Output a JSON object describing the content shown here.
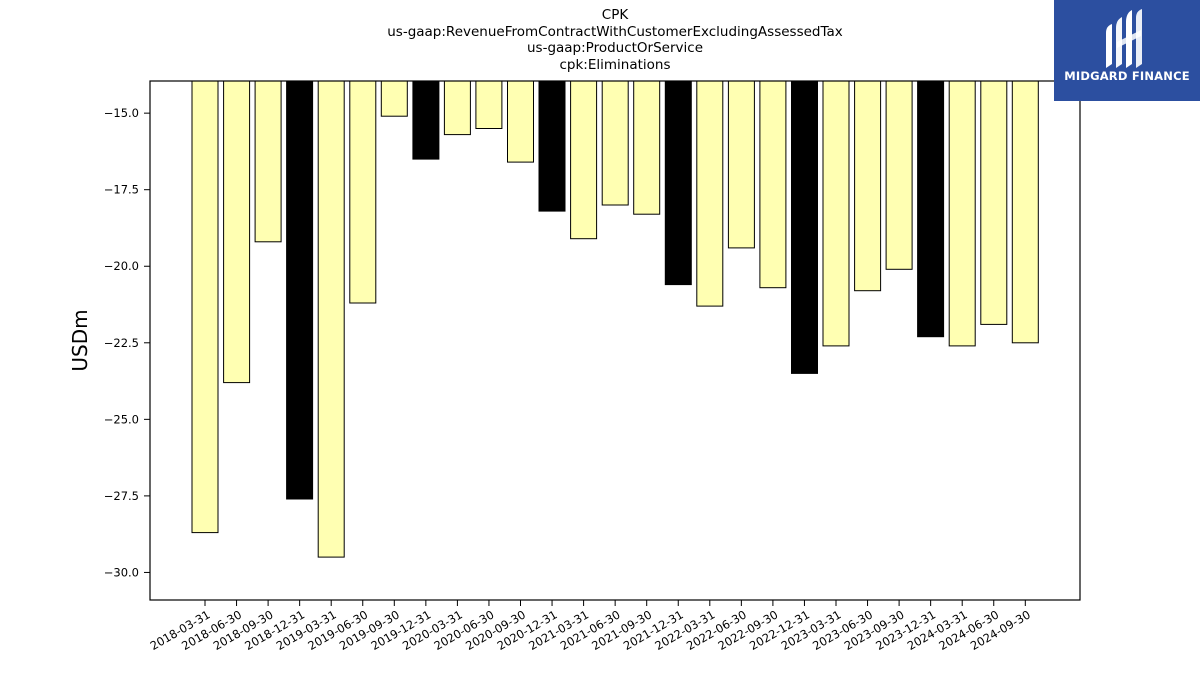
{
  "brand": {
    "name": "MIDGARD FINANCE",
    "color": "#2c4fa0"
  },
  "chart_data": {
    "type": "bar",
    "title_lines": [
      "CPK",
      "us-gaap:RevenueFromContractWithCustomerExcludingAssessedTax",
      "us-gaap:ProductOrService",
      "cpk:Eliminations"
    ],
    "xlabel": "",
    "ylabel": "USDm",
    "ylim": [
      -30.9,
      -13.95
    ],
    "yticks": [
      -15.0,
      -17.5,
      -20.0,
      -22.5,
      -25.0,
      -27.5,
      -30.0
    ],
    "ytick_labels": [
      "−15.0",
      "−17.5",
      "−20.0",
      "−22.5",
      "−25.0",
      "−27.5",
      "−30.0"
    ],
    "grid": false,
    "colors": {
      "quarter": "#ffffb2",
      "year_end": "#000000",
      "edge": "#000000"
    },
    "categories": [
      "2018-03-31",
      "2018-06-30",
      "2018-09-30",
      "2018-12-31",
      "2019-03-31",
      "2019-06-30",
      "2019-09-30",
      "2019-12-31",
      "2020-03-31",
      "2020-06-30",
      "2020-09-30",
      "2020-12-31",
      "2021-03-31",
      "2021-06-30",
      "2021-09-30",
      "2021-12-31",
      "2022-03-31",
      "2022-06-30",
      "2022-09-30",
      "2022-12-31",
      "2023-03-31",
      "2023-06-30",
      "2023-09-30",
      "2023-12-31",
      "2024-03-31",
      "2024-06-30",
      "2024-09-30"
    ],
    "values": [
      -28.7,
      -23.8,
      -19.2,
      -27.6,
      -29.5,
      -21.2,
      -15.1,
      -16.5,
      -15.7,
      -15.5,
      -16.6,
      -18.2,
      -19.1,
      -18.0,
      -18.3,
      -20.6,
      -21.3,
      -19.4,
      -20.7,
      -23.5,
      -22.6,
      -20.8,
      -20.1,
      -22.3,
      -22.6,
      -21.9,
      -22.5
    ],
    "highlight": [
      false,
      false,
      false,
      true,
      false,
      false,
      false,
      true,
      false,
      false,
      false,
      true,
      false,
      false,
      false,
      true,
      false,
      false,
      false,
      true,
      false,
      false,
      false,
      true,
      false,
      false,
      false
    ]
  }
}
